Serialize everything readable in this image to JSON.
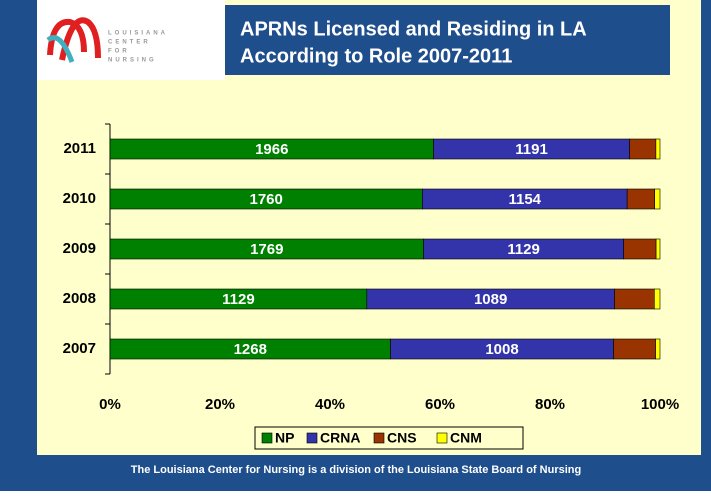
{
  "chart_data": {
    "type": "bar",
    "orientation": "horizontal",
    "stacking": "percent",
    "title": [
      "APRNs Licensed and Residing in LA",
      "According to Role 2007-2011"
    ],
    "logo_text": [
      "LOUISIANA",
      "CENTER",
      "FOR",
      "NURSING"
    ],
    "footer": "The Louisiana Center for Nursing is a division of the Louisiana State Board of Nursing",
    "categories": [
      "2011",
      "2010",
      "2009",
      "2008",
      "2007"
    ],
    "series": [
      {
        "name": "NP",
        "color": "#008000",
        "show_labels": true,
        "values": [
          1966,
          1760,
          1769,
          1129,
          1268
        ]
      },
      {
        "name": "CRNA",
        "color": "#3333aa",
        "show_labels": true,
        "values": [
          1191,
          1154,
          1129,
          1089,
          1008
        ]
      },
      {
        "name": "CNS",
        "color": "#993300",
        "show_labels": false,
        "values": [
          160,
          155,
          183,
          175,
          190
        ]
      },
      {
        "name": "CNM",
        "color": "#ffff00",
        "show_labels": false,
        "values": [
          25,
          30,
          22,
          25,
          20
        ]
      }
    ],
    "xlim": [
      0,
      100
    ],
    "xticks": [
      {
        "value": 0,
        "label": "0%"
      },
      {
        "value": 20,
        "label": "20%"
      },
      {
        "value": 40,
        "label": "40%"
      },
      {
        "value": 60,
        "label": "60%"
      },
      {
        "value": 80,
        "label": "80%"
      },
      {
        "value": 100,
        "label": "100%"
      }
    ],
    "legend": "bottom"
  }
}
